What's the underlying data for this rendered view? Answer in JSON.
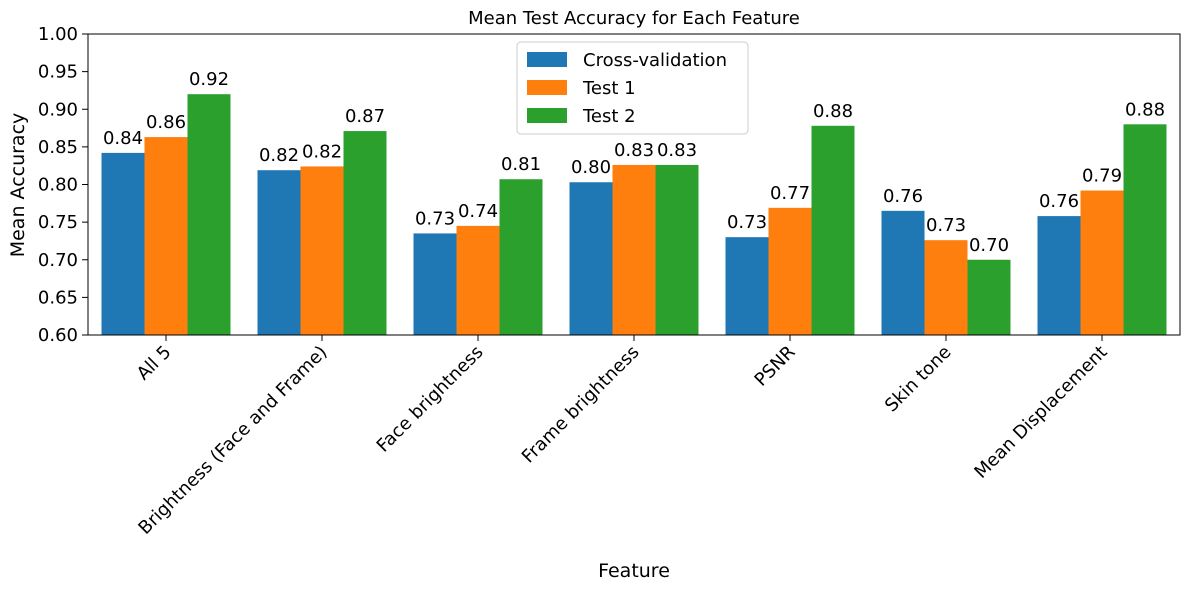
{
  "chart_data": {
    "type": "bar",
    "title": "Mean Test Accuracy for Each Feature",
    "xlabel": "Feature",
    "ylabel": "Mean Accuracy",
    "ylim": [
      0.6,
      1.0
    ],
    "yticks": [
      "0.60",
      "0.65",
      "0.70",
      "0.75",
      "0.80",
      "0.85",
      "0.90",
      "0.95",
      "1.00"
    ],
    "categories": [
      "All 5",
      "Brightness (Face and Frame)",
      "Face brightness",
      "Frame brightness",
      "PSNR",
      "Skin tone",
      "Mean Displacement"
    ],
    "series": [
      {
        "name": "Cross-validation",
        "color": "#1f77b4",
        "values": [
          0.842,
          0.819,
          0.735,
          0.803,
          0.73,
          0.765,
          0.758
        ],
        "labels": [
          "0.84",
          "0.82",
          "0.73",
          "0.80",
          "0.73",
          "0.76",
          "0.76"
        ]
      },
      {
        "name": "Test 1",
        "color": "#ff7f0e",
        "values": [
          0.863,
          0.824,
          0.745,
          0.826,
          0.769,
          0.726,
          0.792
        ],
        "labels": [
          "0.86",
          "0.82",
          "0.74",
          "0.83",
          "0.77",
          "0.73",
          "0.79"
        ]
      },
      {
        "name": "Test 2",
        "color": "#2ca02c",
        "values": [
          0.92,
          0.871,
          0.807,
          0.826,
          0.878,
          0.7,
          0.88
        ],
        "labels": [
          "0.92",
          "0.87",
          "0.81",
          "0.83",
          "0.88",
          "0.70",
          "0.88"
        ]
      }
    ],
    "legend": "upper-center",
    "grid": false
  }
}
